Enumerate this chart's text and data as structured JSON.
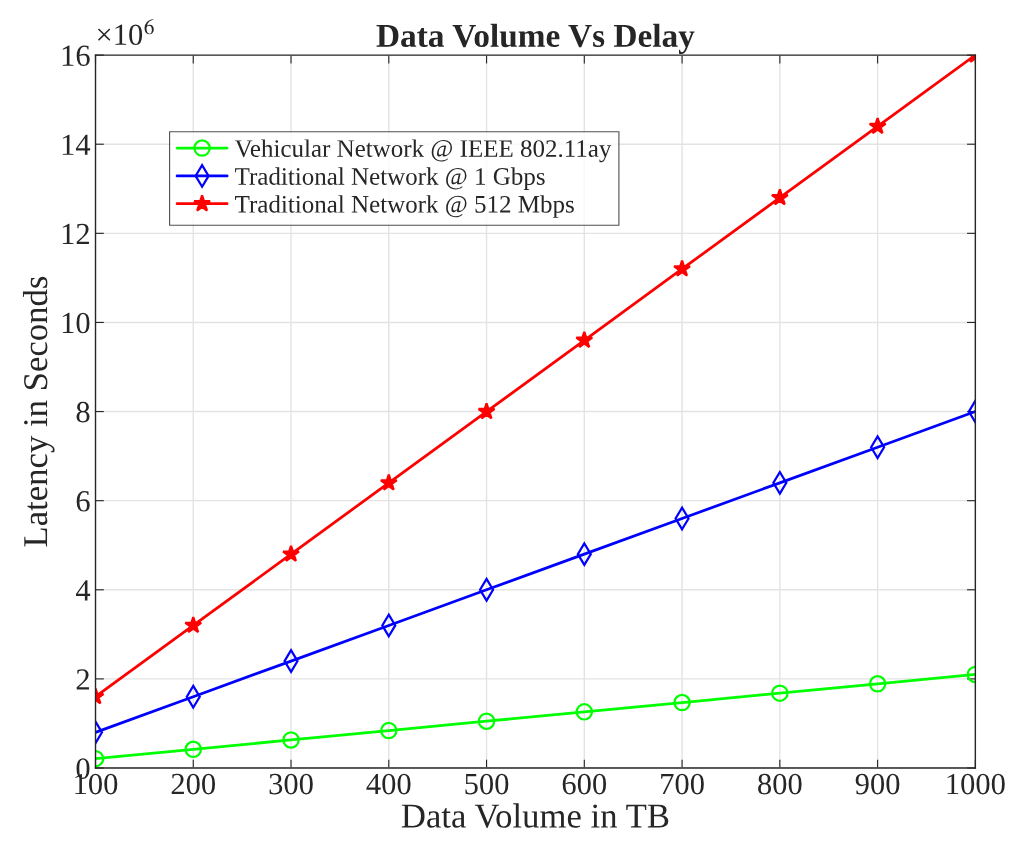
{
  "chart_data": {
    "type": "line",
    "title": "Data Volume Vs Delay",
    "xlabel": "Data Volume in TB",
    "ylabel": "Latency in Seconds",
    "annotations": [
      "×10$^{6}$"
    ],
    "x": [
      100,
      200,
      300,
      400,
      500,
      600,
      700,
      800,
      900,
      1000
    ],
    "series": [
      {
        "name": "Vehicular Network @ IEEE 802.11ay",
        "color": "#00ff00",
        "marker": "circle",
        "values": [
          0.21,
          0.42,
          0.63,
          0.84,
          1.05,
          1.26,
          1.47,
          1.68,
          1.89,
          2.1
        ]
      },
      {
        "name": "Traditional Network @ 1 Gbps",
        "color": "#0000ff",
        "marker": "diamond",
        "values": [
          0.8,
          1.6,
          2.4,
          3.2,
          4.0,
          4.8,
          5.6,
          6.4,
          7.2,
          8.0
        ]
      },
      {
        "name": "Traditional Network @ 512 Mbps",
        "color": "#ff0000",
        "marker": "star",
        "values": [
          1.6,
          3.2,
          4.8,
          6.4,
          8.0,
          9.6,
          11.2,
          12.8,
          14.4,
          16.0
        ]
      }
    ],
    "xlim": [
      100,
      1000
    ],
    "ylim": [
      0,
      16
    ],
    "xticks": [
      100,
      200,
      300,
      400,
      500,
      600,
      700,
      800,
      900,
      1000
    ],
    "yticks": [
      0,
      2,
      4,
      6,
      8,
      10,
      12,
      14,
      16
    ],
    "grid": true,
    "legend": "top left",
    "line_style": "solid"
  }
}
